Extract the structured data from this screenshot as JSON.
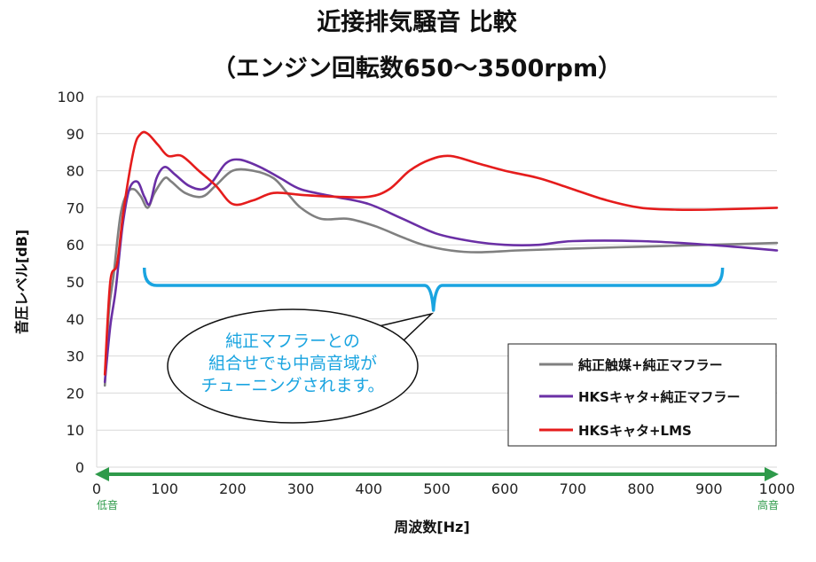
{
  "chart_data": {
    "type": "line",
    "title": "近接排気騒音 比較",
    "subtitle": "（エンジン回転数650～3500rpm）",
    "xlabel": "周波数[Hz]",
    "ylabel": "音圧レベル[dB]",
    "xlim": [
      0,
      1000
    ],
    "ylim": [
      0,
      100
    ],
    "x_ticks": [
      0,
      100,
      200,
      300,
      400,
      500,
      600,
      700,
      800,
      900,
      1000
    ],
    "y_ticks": [
      0,
      10,
      20,
      30,
      40,
      50,
      60,
      70,
      80,
      90,
      100
    ],
    "grid": "horizontal",
    "legend_position": "bottom-right",
    "series": [
      {
        "name": "純正触媒+純正マフラー",
        "color": "#808080",
        "points": [
          [
            12,
            22
          ],
          [
            18,
            42
          ],
          [
            25,
            52
          ],
          [
            35,
            68
          ],
          [
            45,
            74
          ],
          [
            55,
            75
          ],
          [
            65,
            73
          ],
          [
            75,
            70
          ],
          [
            85,
            74
          ],
          [
            100,
            78
          ],
          [
            110,
            77
          ],
          [
            130,
            74
          ],
          [
            155,
            73
          ],
          [
            175,
            76
          ],
          [
            200,
            80
          ],
          [
            230,
            80
          ],
          [
            260,
            78
          ],
          [
            280,
            74
          ],
          [
            300,
            70
          ],
          [
            330,
            67
          ],
          [
            370,
            67
          ],
          [
            410,
            65
          ],
          [
            450,
            62
          ],
          [
            480,
            60
          ],
          [
            520,
            58.5
          ],
          [
            560,
            58
          ],
          [
            620,
            58.5
          ],
          [
            700,
            59
          ],
          [
            800,
            59.5
          ],
          [
            900,
            60
          ],
          [
            1000,
            60.5
          ]
        ]
      },
      {
        "name": "HKSキャタ+純正マフラー",
        "color": "#6a2fa5",
        "points": [
          [
            12,
            23
          ],
          [
            20,
            38
          ],
          [
            28,
            48
          ],
          [
            38,
            65
          ],
          [
            48,
            75
          ],
          [
            60,
            77
          ],
          [
            70,
            73
          ],
          [
            78,
            71
          ],
          [
            88,
            78
          ],
          [
            100,
            81
          ],
          [
            115,
            79
          ],
          [
            135,
            76
          ],
          [
            155,
            75
          ],
          [
            170,
            77
          ],
          [
            190,
            82
          ],
          [
            210,
            83
          ],
          [
            240,
            81
          ],
          [
            270,
            78
          ],
          [
            300,
            75
          ],
          [
            350,
            73
          ],
          [
            400,
            71
          ],
          [
            450,
            67
          ],
          [
            500,
            63
          ],
          [
            550,
            61
          ],
          [
            600,
            60
          ],
          [
            650,
            60
          ],
          [
            700,
            61
          ],
          [
            800,
            61
          ],
          [
            900,
            60
          ],
          [
            1000,
            58.5
          ]
        ]
      },
      {
        "name": "HKSキャタ+LMS",
        "color": "#e51c1c",
        "points": [
          [
            12,
            25
          ],
          [
            20,
            50
          ],
          [
            30,
            55
          ],
          [
            40,
            70
          ],
          [
            55,
            86
          ],
          [
            65,
            90
          ],
          [
            75,
            90
          ],
          [
            90,
            87
          ],
          [
            105,
            84
          ],
          [
            125,
            84
          ],
          [
            150,
            80
          ],
          [
            175,
            76
          ],
          [
            200,
            71
          ],
          [
            230,
            72
          ],
          [
            260,
            74
          ],
          [
            300,
            73.5
          ],
          [
            350,
            73
          ],
          [
            400,
            73
          ],
          [
            430,
            75
          ],
          [
            460,
            80
          ],
          [
            490,
            83
          ],
          [
            520,
            84
          ],
          [
            560,
            82
          ],
          [
            600,
            80
          ],
          [
            650,
            78
          ],
          [
            700,
            75
          ],
          [
            750,
            72
          ],
          [
            800,
            70
          ],
          [
            850,
            69.5
          ],
          [
            900,
            69.5
          ],
          [
            1000,
            70
          ]
        ]
      }
    ],
    "annotations": {
      "callout_lines": [
        "純正マフラーとの",
        "組合せでも中高音域が",
        "チューニングされます。"
      ],
      "low_label": "低音",
      "high_label": "高音",
      "bracket_range_hz": [
        70,
        920
      ],
      "bracket_level_db": 50
    }
  }
}
